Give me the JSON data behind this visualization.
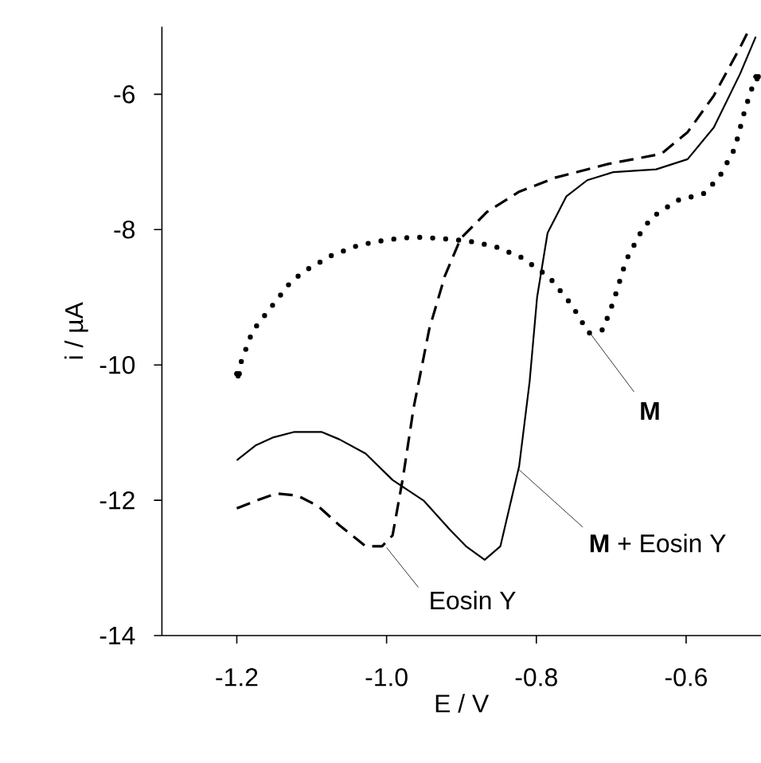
{
  "chart_data": {
    "type": "line",
    "xlabel": "E / V",
    "ylabel": "i / µA",
    "xlim": [
      -1.3,
      -0.5
    ],
    "ylim": [
      -14,
      -5
    ],
    "xticks": [
      {
        "value": -1.2,
        "label": "-1.2"
      },
      {
        "value": -1.0,
        "label": "-1.0"
      },
      {
        "value": -0.8,
        "label": "-0.8"
      },
      {
        "value": -0.6,
        "label": "-0.6"
      }
    ],
    "yticks": [
      -14,
      -12,
      -10,
      -8,
      -6
    ],
    "series": [
      {
        "color": "#000000",
        "line_style": "dotted",
        "x": [
          -1.2,
          -1.179,
          -1.153,
          -1.127,
          -1.106,
          -1.073,
          -1.037,
          -0.999,
          -0.964,
          -0.929,
          -0.89,
          -0.855,
          -0.82,
          -0.783,
          -0.753,
          -0.73,
          -0.711,
          -0.697,
          -0.68,
          -0.661,
          -0.646,
          -0.612,
          -0.577,
          -0.556,
          -0.535,
          -0.521,
          -0.507
        ],
        "values": [
          -10.13,
          -9.5,
          -9.13,
          -8.76,
          -8.59,
          -8.38,
          -8.23,
          -8.15,
          -8.11,
          -8.13,
          -8.17,
          -8.25,
          -8.41,
          -8.7,
          -9.11,
          -9.53,
          -9.48,
          -9.06,
          -8.45,
          -8.05,
          -7.82,
          -7.57,
          -7.47,
          -7.23,
          -6.8,
          -6.21,
          -5.74
        ]
      },
      {
        "color": "#000000",
        "line_style": "solid",
        "x": [
          -1.2,
          -1.175,
          -1.151,
          -1.123,
          -1.087,
          -1.063,
          -1.028,
          -0.992,
          -0.95,
          -0.915,
          -0.894,
          -0.869,
          -0.848,
          -0.823,
          -0.809,
          -0.799,
          -0.785,
          -0.76,
          -0.732,
          -0.697,
          -0.64,
          -0.598,
          -0.563,
          -0.528,
          -0.507
        ],
        "values": [
          -11.41,
          -11.19,
          -11.07,
          -10.99,
          -10.99,
          -11.1,
          -11.31,
          -11.7,
          -12.01,
          -12.44,
          -12.68,
          -12.88,
          -12.68,
          -11.5,
          -10.25,
          -9.0,
          -8.05,
          -7.51,
          -7.27,
          -7.15,
          -7.11,
          -6.96,
          -6.49,
          -5.7,
          -5.15
        ]
      },
      {
        "color": "#000000",
        "line_style": "dashed",
        "x": [
          -1.2,
          -1.175,
          -1.147,
          -1.119,
          -1.091,
          -1.063,
          -1.028,
          -1.006,
          -0.992,
          -0.978,
          -0.964,
          -0.943,
          -0.922,
          -0.901,
          -0.866,
          -0.823,
          -0.774,
          -0.704,
          -0.633,
          -0.598,
          -0.563,
          -0.528,
          -0.514
        ],
        "values": [
          -12.12,
          -12.01,
          -11.9,
          -11.93,
          -12.09,
          -12.37,
          -12.68,
          -12.68,
          -12.52,
          -11.66,
          -10.64,
          -9.47,
          -8.68,
          -8.13,
          -7.74,
          -7.44,
          -7.23,
          -7.03,
          -6.88,
          -6.56,
          -6.02,
          -5.31,
          -5.0
        ]
      }
    ],
    "annotations": [
      {
        "text": "**M**",
        "x": -0.727,
        "y": -9.55
      },
      {
        "text": "**M** + Eosin Y",
        "x": -0.823,
        "y": -11.55
      },
      {
        "text": "Eosin Y",
        "x": -1.0,
        "y": -12.7
      }
    ]
  }
}
